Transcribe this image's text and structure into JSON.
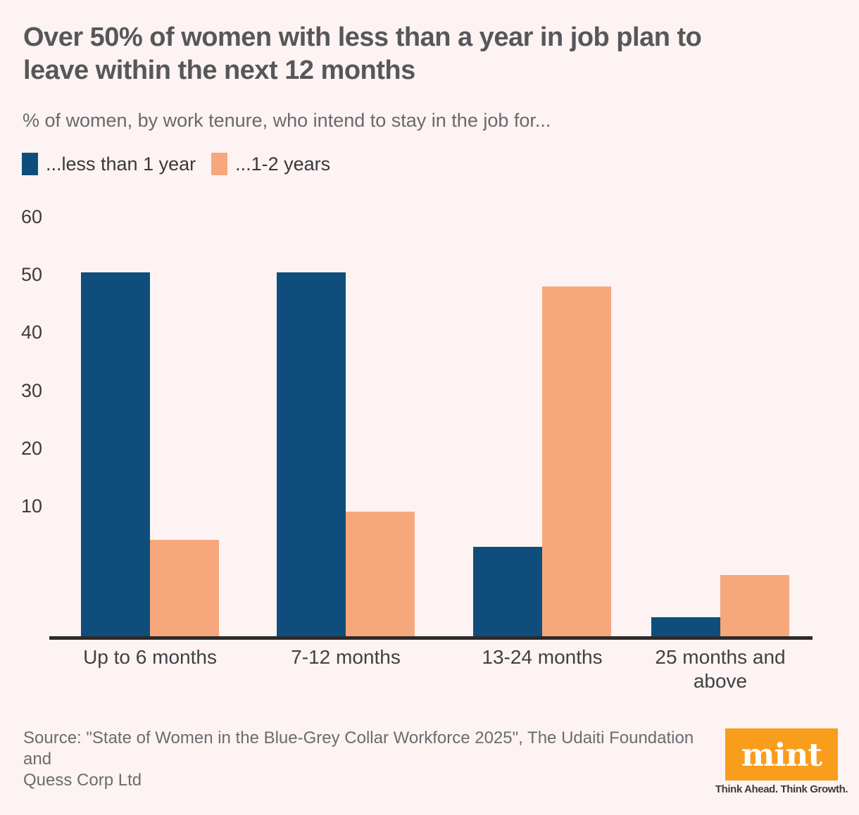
{
  "header": {
    "title_lines": [
      "Over 50% of women with less than a year in job plan to",
      "leave within the next 12 months"
    ],
    "subtitle": "% of women, by work tenure, who intend to stay in the job for..."
  },
  "legend": {
    "items": [
      {
        "label": "...less than 1 year"
      },
      {
        "label": "...1-2 years"
      }
    ]
  },
  "chart_data": {
    "type": "bar",
    "title": "Over 50% of women with less than a year in job plan to leave within the next 12 months",
    "subtitle": "% of women, by work tenure, who intend to stay in the job for...",
    "categories": [
      "Up to 6 months",
      "7-12 months",
      "13-24 months",
      "25 months and above"
    ],
    "series": [
      {
        "name": "...less than 1 year",
        "color": "#0F4E7C",
        "values": [
          52,
          52,
          13,
          3
        ]
      },
      {
        "name": "...1-2 years",
        "color": "#F7A77C",
        "values": [
          14,
          18,
          50,
          9
        ]
      }
    ],
    "xlabel": "",
    "ylabel": "",
    "yticks": [
      60,
      50,
      40,
      30,
      20,
      10
    ],
    "ylim": [
      0,
      60
    ],
    "grid": false,
    "legend_position": "top-left"
  },
  "footer": {
    "source_lines": [
      "Source: \"State of Women in the Blue-Grey Collar Workforce 2025\", The Udaiti Foundation and",
      "Quess Corp Ltd"
    ],
    "logo_text": "mint",
    "tagline": "Think Ahead. Think Growth."
  },
  "colors": {
    "background": "#FDF3F2",
    "series_blue": "#0F4E7C",
    "series_peach": "#F7A77C",
    "axis_line": "#2D2B2A",
    "title_text": "#56575A",
    "muted_text": "#696C70",
    "logo_orange": "#F99D1C",
    "logo_text": "#FFFFFF"
  }
}
